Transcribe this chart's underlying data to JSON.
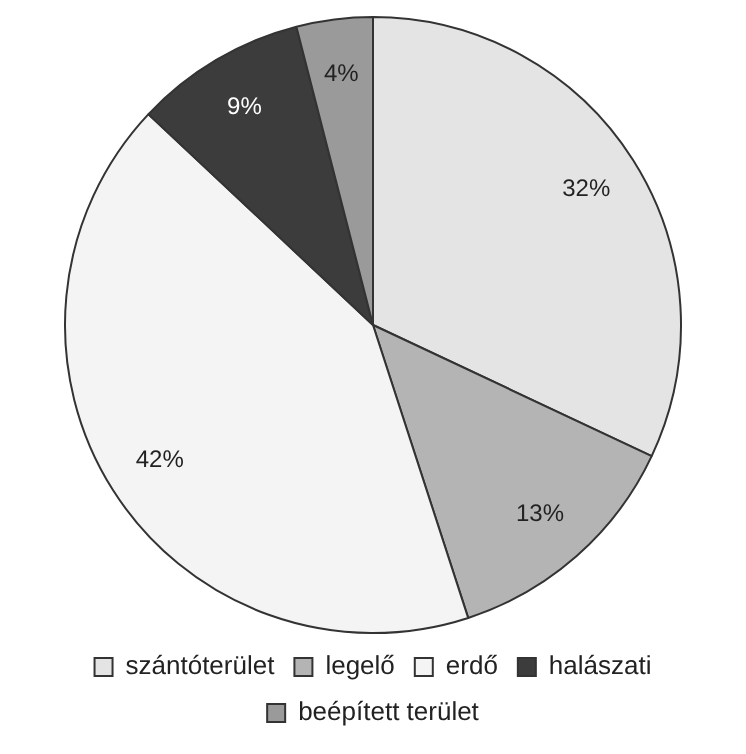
{
  "chart_data": {
    "type": "pie",
    "categories": [
      "szántóterület",
      "legelő",
      "erdő",
      "halászati",
      "beépített terület"
    ],
    "values": [
      32,
      13,
      42,
      9,
      4
    ],
    "colors": [
      "#e4e4e4",
      "#b4b4b4",
      "#f4f4f4",
      "#3c3c3c",
      "#9a9a9a"
    ],
    "value_labels": [
      "32%",
      "13%",
      "42%",
      "9%",
      "4%"
    ],
    "legend": "bottom"
  }
}
